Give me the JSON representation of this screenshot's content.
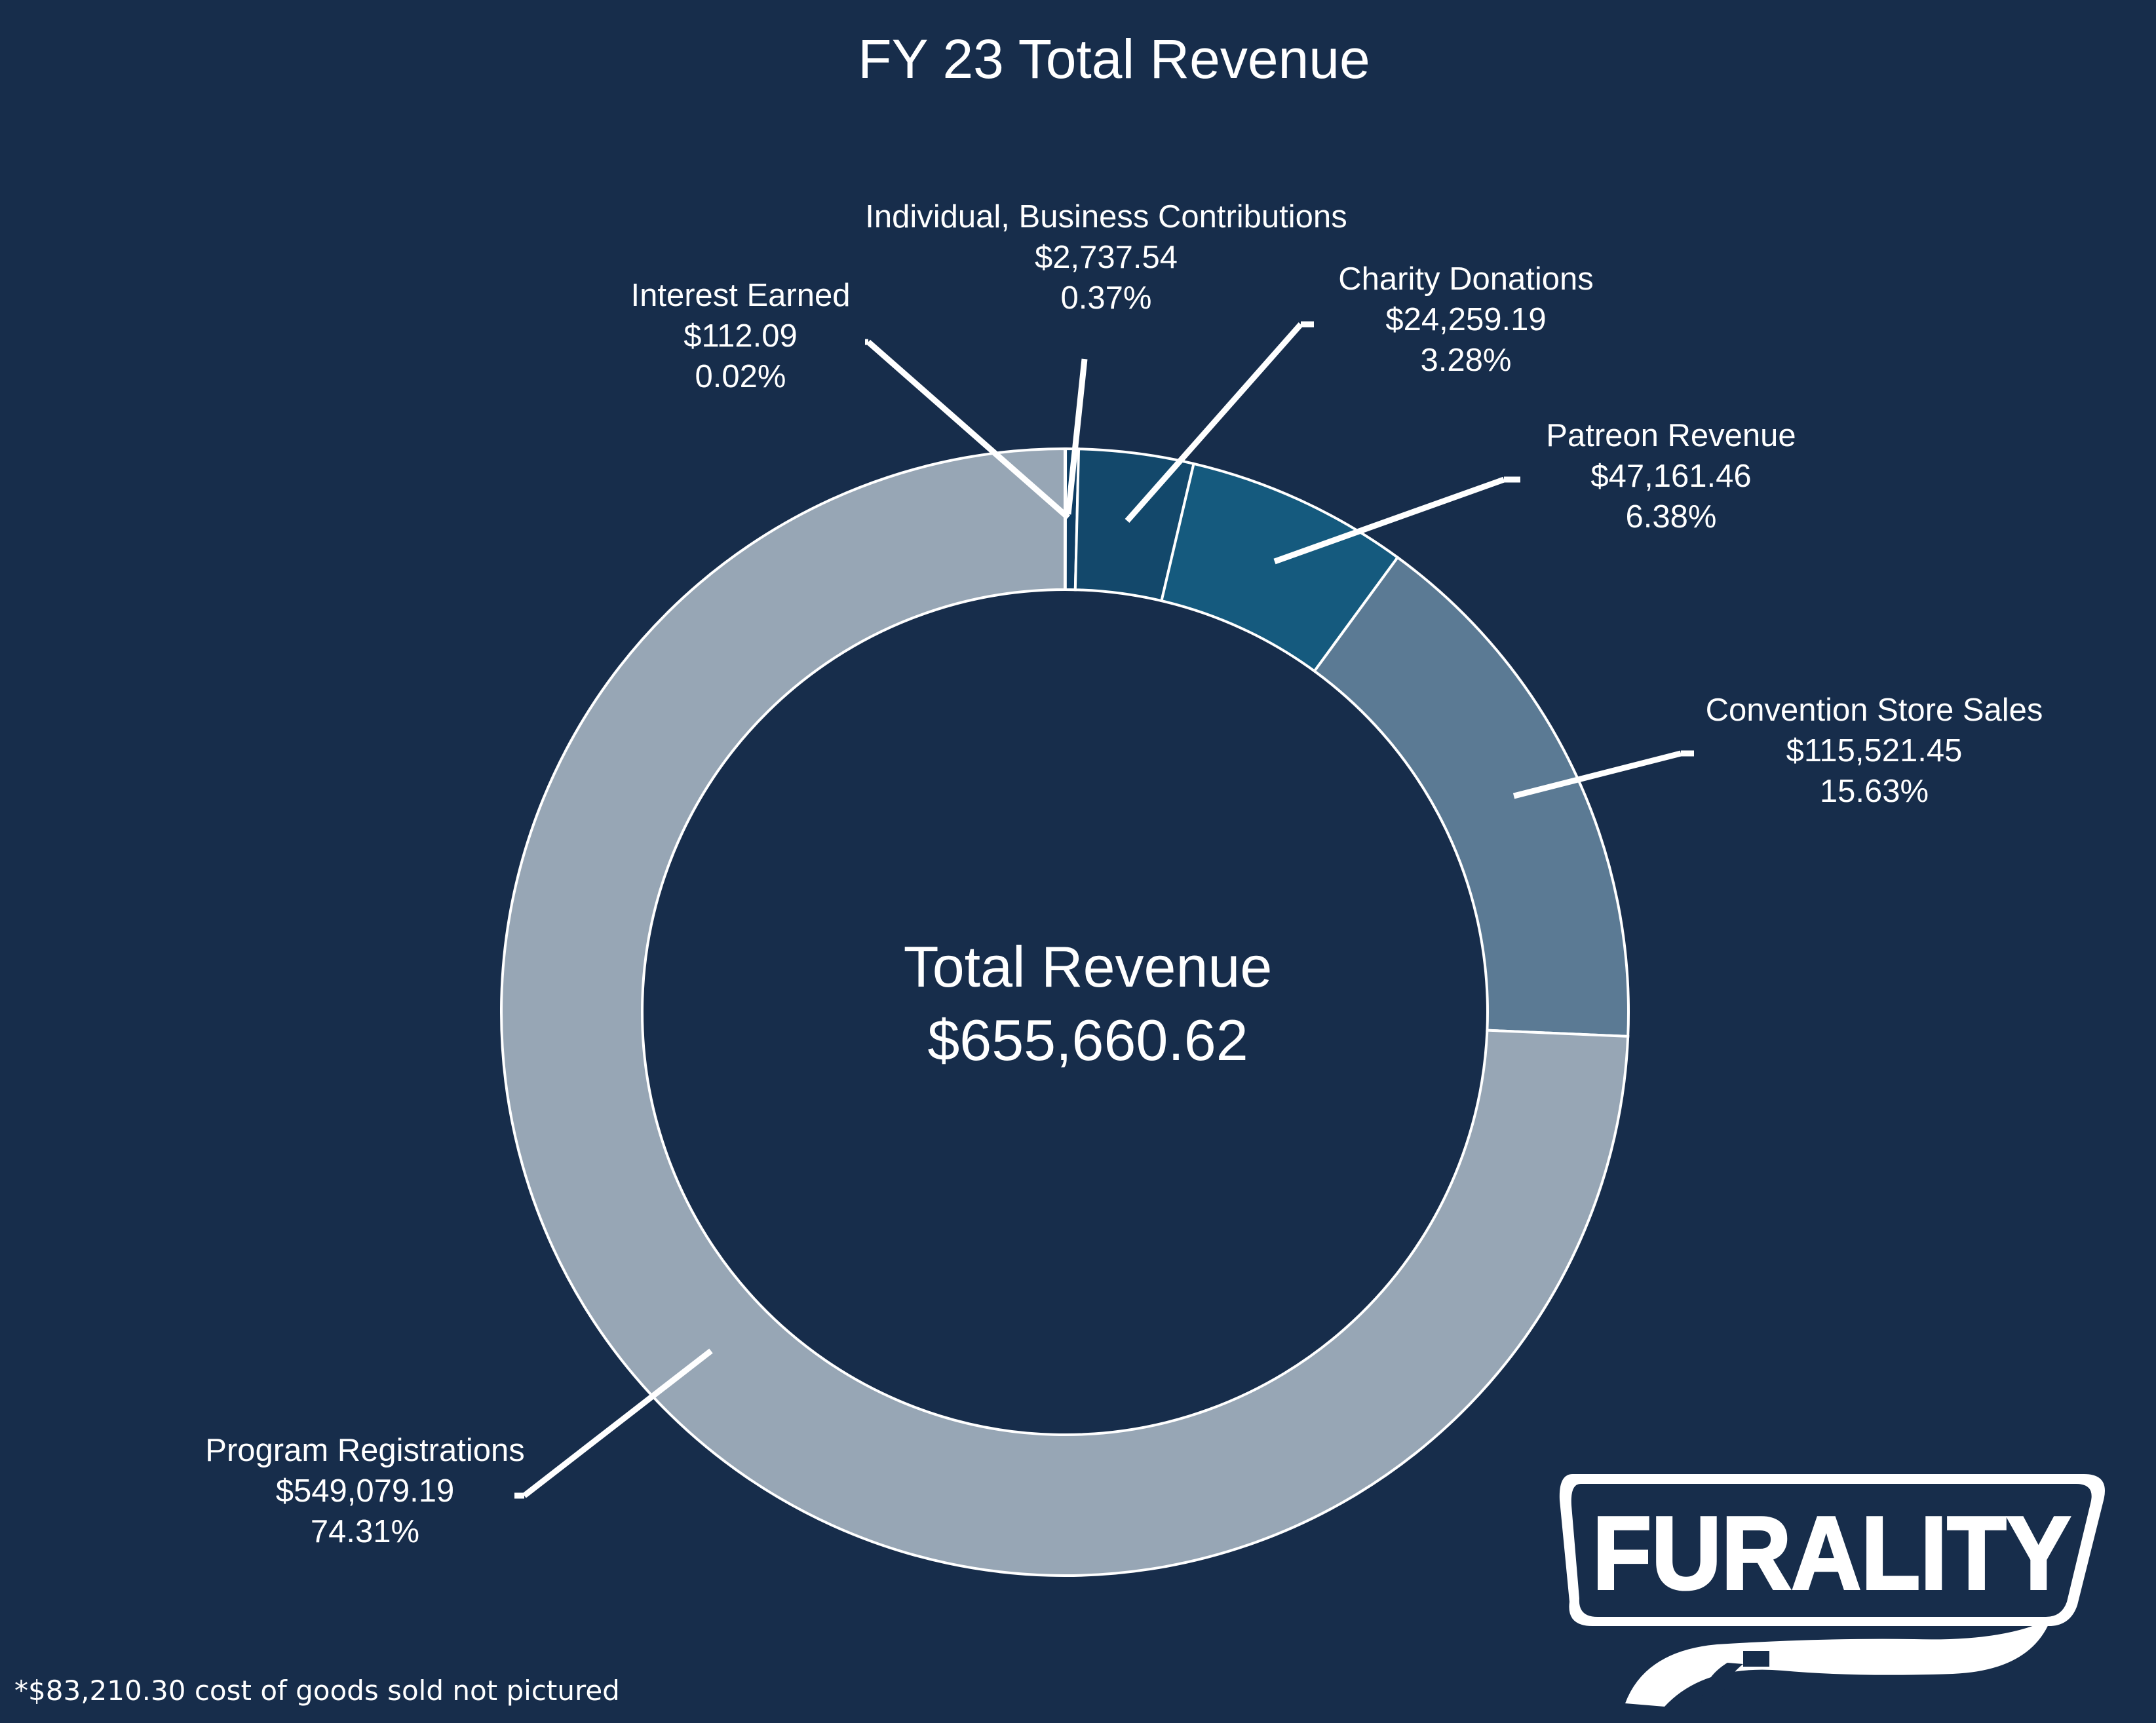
{
  "chart_data": {
    "type": "pie",
    "title": "FY 23 Total Revenue",
    "center": {
      "label": "Total Revenue",
      "value": "$655,660.62"
    },
    "slices": [
      {
        "label": "Interest Earned",
        "amount": "$112.09",
        "percent_label": "0.02%",
        "percent": 0.02,
        "color": "#c9d3dc"
      },
      {
        "label": "Individual, Business Contributions",
        "amount": "$2,737.54",
        "percent_label": "0.37%",
        "percent": 0.37,
        "color": "#0e3d63"
      },
      {
        "label": "Charity Donations",
        "amount": "$24,259.19",
        "percent_label": "3.28%",
        "percent": 3.28,
        "color": "#13486b"
      },
      {
        "label": "Patreon Revenue",
        "amount": "$47,161.46",
        "percent_label": "6.38%",
        "percent": 6.38,
        "color": "#155a7e"
      },
      {
        "label": "Convention Store Sales",
        "amount": "$115,521.45",
        "percent_label": "15.63%",
        "percent": 15.63,
        "color": "#5b7a94"
      },
      {
        "label": "Program Registrations",
        "amount": "$549,079.19",
        "percent_label": "74.31%",
        "percent": 74.31,
        "color": "#97a6b5"
      }
    ]
  },
  "footnote": "*$83,210.30 cost of goods sold not pictured",
  "logo": {
    "text": "FURALITY"
  },
  "colors": {
    "background": "#172d4b",
    "text": "#ffffff",
    "stroke": "#ffffff"
  }
}
